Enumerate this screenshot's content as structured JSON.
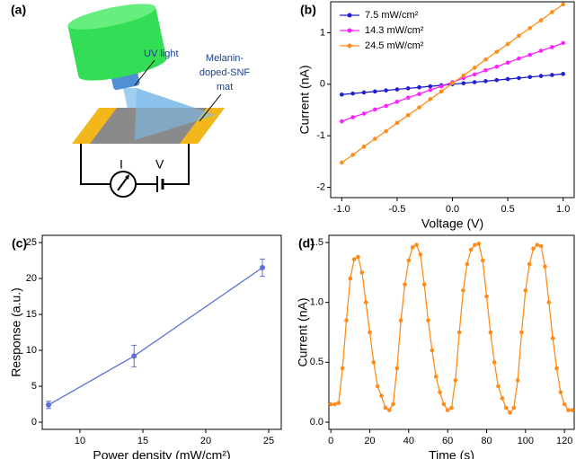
{
  "diagram": {
    "panel": "(a)",
    "light_label": "UV light",
    "mat_label": [
      "Melanin-",
      "doped-SNF",
      "mat"
    ],
    "current_label": "I",
    "voltage_label": "V"
  },
  "chart_data": [
    {
      "type": "line",
      "panel": "(b)",
      "xlabel": "Voltage (V)",
      "ylabel": "Current (nA)",
      "x": [
        -1.0,
        -0.9,
        -0.8,
        -0.7,
        -0.6,
        -0.5,
        -0.4,
        -0.3,
        -0.2,
        -0.1,
        0.0,
        0.1,
        0.2,
        0.3,
        0.4,
        0.5,
        0.6,
        0.7,
        0.8,
        0.9,
        1.0
      ],
      "series": [
        {
          "name": "7.5 mW/cm²",
          "color": "#1f1fd0",
          "values": [
            -0.2,
            -0.18,
            -0.16,
            -0.14,
            -0.12,
            -0.1,
            -0.08,
            -0.06,
            -0.04,
            -0.02,
            0,
            0.02,
            0.04,
            0.06,
            0.08,
            0.1,
            0.12,
            0.14,
            0.16,
            0.18,
            0.2
          ]
        },
        {
          "name": "14.3 mW/cm²",
          "color": "#ff1fff",
          "values": [
            -0.72,
            -0.64,
            -0.57,
            -0.49,
            -0.42,
            -0.34,
            -0.26,
            -0.19,
            -0.11,
            -0.04,
            0.04,
            0.12,
            0.19,
            0.27,
            0.34,
            0.42,
            0.5,
            0.57,
            0.65,
            0.72,
            0.8
          ]
        },
        {
          "name": "24.5 mW/cm²",
          "color": "#ff8c1a",
          "values": [
            -1.52,
            -1.37,
            -1.21,
            -1.06,
            -0.91,
            -0.75,
            -0.6,
            -0.45,
            -0.29,
            -0.14,
            0.02,
            0.17,
            0.32,
            0.48,
            0.63,
            0.78,
            0.94,
            1.09,
            1.24,
            1.4,
            1.55
          ]
        }
      ],
      "xlim": [
        -1.1,
        1.1
      ],
      "xticks": [
        {
          "value": -1,
          "label": "-1.0"
        },
        -0.5,
        {
          "value": 0,
          "label": "0.0"
        },
        0.5,
        {
          "value": 1,
          "label": "1.0"
        }
      ],
      "ylim": [
        -2.2,
        1.6
      ],
      "yticks": [
        -2,
        -1,
        0,
        1
      ],
      "legend": "upper left"
    },
    {
      "type": "line",
      "panel": "(c)",
      "xlabel": "Power density (mW/cm²)",
      "ylabel": "Response (a.u.)",
      "x": [
        7.5,
        14.3,
        24.5
      ],
      "series": [
        {
          "name": "Response",
          "color": "#5b6fd6",
          "values": [
            2.4,
            9.2,
            21.5
          ],
          "errors": [
            0.5,
            1.5,
            1.2
          ]
        }
      ],
      "xlim": [
        7,
        26
      ],
      "xticks": [
        10,
        15,
        20,
        25
      ],
      "ylim": [
        -1,
        26
      ],
      "yticks": [
        0,
        5,
        10,
        15,
        20,
        25
      ]
    },
    {
      "type": "line",
      "panel": "(d)",
      "xlabel": "Time (s)",
      "ylabel": "Current (nA)",
      "x": [
        0,
        2,
        4,
        6,
        8,
        10,
        12,
        14,
        16,
        18,
        20,
        22,
        24,
        26,
        28,
        30,
        32,
        34,
        36,
        38,
        40,
        42,
        44,
        46,
        48,
        50,
        52,
        54,
        56,
        58,
        60,
        62,
        64,
        66,
        68,
        70,
        72,
        74,
        76,
        78,
        80,
        82,
        84,
        86,
        88,
        90,
        92,
        94,
        96,
        98,
        100,
        102,
        104,
        106,
        108,
        110,
        112,
        114,
        116,
        118,
        120,
        122,
        124
      ],
      "series": [
        {
          "name": "Current",
          "color": "#ff8c1a",
          "values": [
            0.15,
            0.15,
            0.16,
            0.45,
            0.85,
            1.2,
            1.36,
            1.38,
            1.25,
            1.0,
            0.75,
            0.5,
            0.3,
            0.22,
            0.12,
            0.1,
            0.15,
            0.45,
            0.85,
            1.15,
            1.35,
            1.46,
            1.48,
            1.4,
            1.15,
            0.85,
            0.6,
            0.38,
            0.25,
            0.15,
            0.1,
            0.12,
            0.35,
            0.75,
            1.1,
            1.32,
            1.44,
            1.48,
            1.49,
            1.35,
            1.05,
            0.75,
            0.5,
            0.3,
            0.2,
            0.12,
            0.08,
            0.12,
            0.35,
            0.75,
            1.1,
            1.32,
            1.45,
            1.48,
            1.47,
            1.3,
            1.0,
            0.7,
            0.45,
            0.25,
            0.15,
            0.1,
            0.1
          ]
        }
      ],
      "xlim": [
        -1,
        125
      ],
      "xticks": [
        0,
        20,
        40,
        60,
        80,
        100,
        120
      ],
      "ylim": [
        -0.06,
        1.56
      ],
      "yticks": [
        {
          "value": 0,
          "label": "0.0"
        },
        0.5,
        {
          "value": 1,
          "label": "1.0"
        },
        1.5
      ]
    }
  ]
}
